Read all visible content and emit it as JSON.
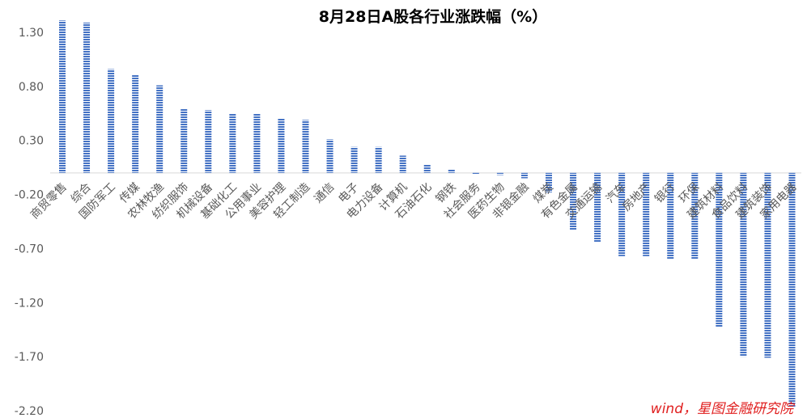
{
  "chart_data": {
    "type": "bar",
    "title": "8月28日A股各行业涨跌幅（%）",
    "xlabel": "",
    "ylabel": "",
    "ylim": [
      -2.2,
      1.45
    ],
    "yticks": [
      "1.30",
      "0.80",
      "0.30",
      "-0.20",
      "-0.70",
      "-1.20",
      "-1.70",
      "-2.20"
    ],
    "grid": false,
    "legend": "none",
    "bar_color": "#4472c4",
    "bar_pattern": "horizontal-stripes",
    "categories": [
      "商贸零售",
      "综合",
      "国防军工",
      "传媒",
      "农林牧渔",
      "纺织服饰",
      "机械设备",
      "基础化工",
      "公用事业",
      "美容护理",
      "轻工制造",
      "通信",
      "电子",
      "电力设备",
      "计算机",
      "石油石化",
      "钢铁",
      "社会服务",
      "医药生物",
      "非银金融",
      "煤炭",
      "有色金属",
      "交通运输",
      "汽车",
      "房地产",
      "银行",
      "环保",
      "建筑材料",
      "食品饮料",
      "建筑装饰",
      "家用电器"
    ],
    "values": [
      1.41,
      1.39,
      0.96,
      0.91,
      0.81,
      0.59,
      0.58,
      0.55,
      0.55,
      0.5,
      0.49,
      0.31,
      0.24,
      0.24,
      0.16,
      0.08,
      0.03,
      -0.01,
      -0.02,
      -0.05,
      -0.18,
      -0.53,
      -0.64,
      -0.77,
      -0.77,
      -0.8,
      -0.8,
      -1.43,
      -1.7,
      -1.71,
      -2.17
    ]
  },
  "source": "wind，星图金融研究院"
}
